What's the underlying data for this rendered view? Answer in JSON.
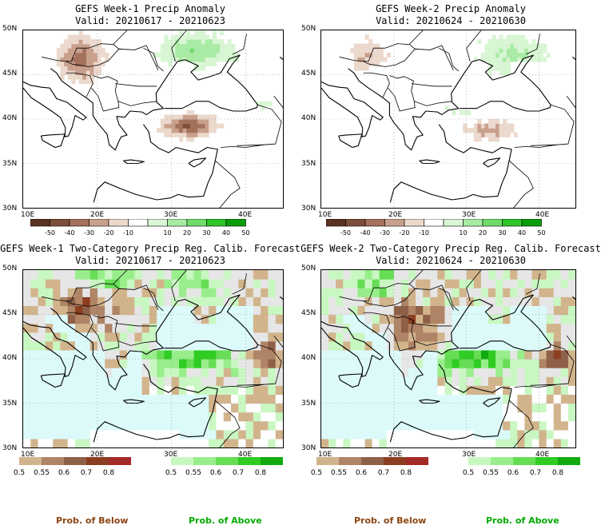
{
  "panels": [
    {
      "title_line1": "GEFS Week-1 Precip Anomaly",
      "title_line2": "Valid: 20210617 - 20210623",
      "type": "anomaly",
      "lat_labels": [
        "50N",
        "45N",
        "40N",
        "35N",
        "30N"
      ],
      "lon_labels": [
        "10E",
        "20E",
        "30E",
        "40E"
      ],
      "colorbar_labels": [
        "-50",
        "-40",
        "-30",
        "-20",
        "-10",
        "10",
        "20",
        "30",
        "40",
        "50"
      ]
    },
    {
      "title_line1": "GEFS Week-2 Precip Anomaly",
      "title_line2": "Valid: 20210624 - 20210630",
      "type": "anomaly",
      "lat_labels": [
        "50N",
        "45N",
        "40N",
        "35N",
        "30N"
      ],
      "lon_labels": [
        "10E",
        "20E",
        "30E",
        "40E"
      ],
      "colorbar_labels": [
        "-50",
        "-40",
        "-30",
        "-20",
        "-10",
        "10",
        "20",
        "30",
        "40",
        "50"
      ]
    },
    {
      "title_line1": "GEFS Week-1 Two-Category Precip Reg. Calib. Forecast",
      "title_line2": "Valid: 20210617 - 20210623",
      "type": "probability",
      "lat_labels": [
        "50N",
        "45N",
        "40N",
        "35N",
        "30N"
      ],
      "lon_labels": [
        "10E",
        "20E",
        "30E",
        "40E"
      ],
      "below_labels": [
        "0.5",
        "0.55",
        "0.6",
        "0.7",
        "0.8"
      ],
      "above_labels": [
        "0.5",
        "0.55",
        "0.6",
        "0.7",
        "0.8"
      ]
    },
    {
      "title_line1": "GEFS Week-2 Two-Category Precip Reg. Calib. Forecast",
      "title_line2": "Valid: 20210624 - 20210630",
      "type": "probability",
      "lat_labels": [
        "50N",
        "45N",
        "40N",
        "35N",
        "30N"
      ],
      "lon_labels": [
        "10E",
        "20E",
        "30E",
        "40E"
      ],
      "below_labels": [
        "0.5",
        "0.55",
        "0.6",
        "0.7",
        "0.8"
      ],
      "above_labels": [
        "0.5",
        "0.55",
        "0.6",
        "0.7",
        "0.8"
      ]
    }
  ],
  "footer": {
    "below_label": "Prob. of Below",
    "above_label": "Prob. of Above",
    "below_color": "#8b4513",
    "above_color": "#00aa00"
  },
  "colors": {
    "anomaly_dry": [
      "#5a3322",
      "#7d4e3a",
      "#a3715c",
      "#c9a08c",
      "#ecd9cd"
    ],
    "anomaly_wet": [
      "#d8f5d4",
      "#a9eba5",
      "#6fdc6a",
      "#2fc42a",
      "#0a9d0a"
    ],
    "prob_below": [
      "#d2b48c",
      "#b08466",
      "#8f6048",
      "#8b3e20",
      "#a52a2a"
    ],
    "prob_above": [
      "#c9f7c2",
      "#99ee8c",
      "#66dd55",
      "#2fcc22",
      "#11aa11"
    ],
    "sea_prob": "#dcfafa",
    "land_prob_gray": "#e6e6e6"
  }
}
